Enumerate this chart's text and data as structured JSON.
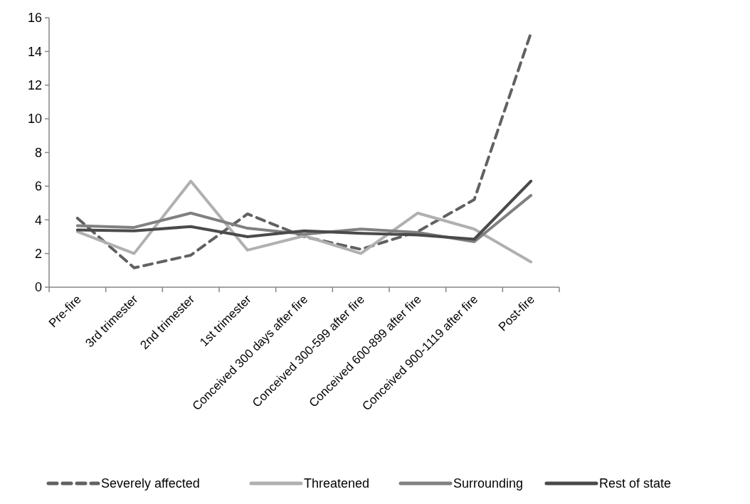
{
  "chart_data": {
    "type": "line",
    "categories": [
      "Pre-fire",
      "3rd trimester",
      "2nd trimester",
      "1st trimester",
      "Conceived 300 days after fire",
      "Conceived 300-599 after fire",
      "Conceived 600-899 after fire",
      "Conceived 900-1119  after fire",
      "Post-fire"
    ],
    "series": [
      {
        "name": "Severely affected",
        "color": "#616161",
        "line_style": "dashed",
        "values": [
          4.1,
          1.15,
          1.9,
          4.35,
          3.0,
          2.25,
          3.3,
          5.2,
          15.1
        ]
      },
      {
        "name": "Threatened",
        "color": "#b0b0b0",
        "values": [
          3.3,
          2.0,
          6.3,
          2.2,
          3.05,
          2.0,
          4.4,
          3.45,
          1.5
        ]
      },
      {
        "name": "Surrounding",
        "color": "#808080",
        "values": [
          3.65,
          3.55,
          4.4,
          3.5,
          3.15,
          3.45,
          3.25,
          2.7,
          5.45
        ]
      },
      {
        "name": "Rest of state",
        "color": "#4a4a4a",
        "values": [
          3.4,
          3.35,
          3.6,
          3.0,
          3.35,
          3.2,
          3.1,
          2.85,
          6.3
        ]
      }
    ],
    "ylim": [
      0,
      16
    ],
    "yticks": [
      0,
      2,
      4,
      6,
      8,
      10,
      12,
      14,
      16
    ],
    "grid": false,
    "legend": "bottom",
    "marker": "none",
    "line_style": "solid"
  }
}
